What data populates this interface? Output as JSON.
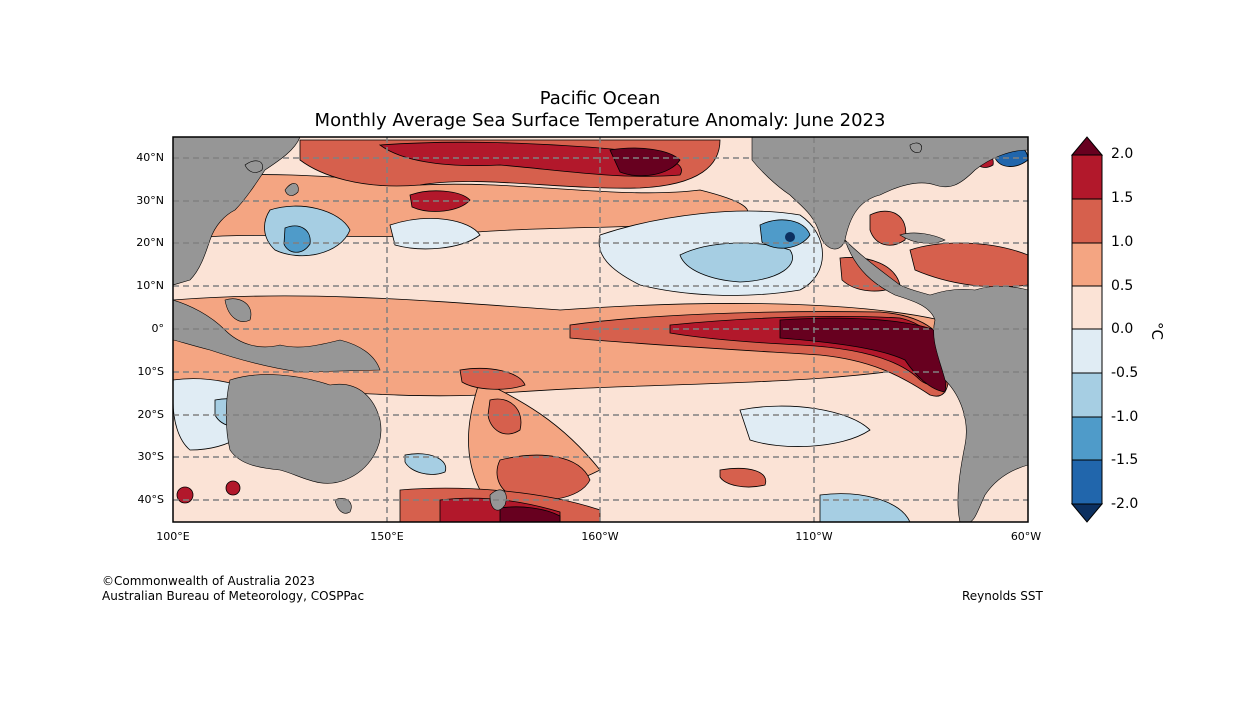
{
  "title": {
    "line1": "Pacific Ocean",
    "line2": "Monthly Average Sea Surface Temperature Anomaly: June 2023"
  },
  "axes": {
    "lat_labels": [
      "40°N",
      "30°N",
      "20°N",
      "10°N",
      "0°",
      "10°S",
      "20°S",
      "30°S",
      "40°S"
    ],
    "lon_labels": [
      "100°E",
      "150°E",
      "160°W",
      "110°W",
      "60°W"
    ]
  },
  "colorbar": {
    "unit": "°C",
    "ticks": [
      "2.0",
      "1.5",
      "1.0",
      "0.5",
      "0.0",
      "-0.5",
      "-1.0",
      "-1.5",
      "-2.0"
    ],
    "colors": {
      "above_2": "#67001f",
      "1.5_to_2": "#b2182b",
      "1_to_1.5": "#d6604d",
      "0.5_to_1": "#f4a582",
      "0_to_0.5": "#fbe3d6",
      "-0.5_to_0": "#e0ecf4",
      "-1_to_-0.5": "#a6cee3",
      "-1.5_to_-1": "#4f9bc9",
      "-2_to_-1.5": "#2166ac",
      "below_-2": "#0c3060"
    },
    "land": "#969696"
  },
  "credits": {
    "copyright": "©Commonwealth of Australia 2023",
    "agency": "Australian Bureau of Meteorology, COSPPac",
    "source": "Reynolds SST"
  }
}
